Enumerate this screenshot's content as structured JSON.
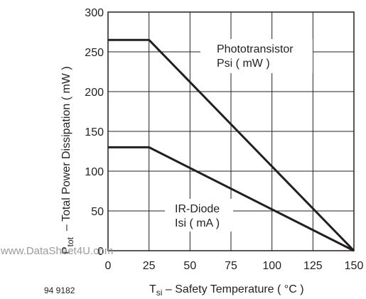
{
  "chart_data": {
    "type": "line",
    "xlabel": {
      "sym": "T",
      "sub": "si",
      "rest": " – Safety Temperature ( °C )"
    },
    "ylabel": {
      "sym": "P",
      "sub": "tot",
      "rest": "  – Total Power Dissipation ( mW )"
    },
    "xlim": [
      0,
      150
    ],
    "ylim": [
      0,
      300
    ],
    "xticks": [
      0,
      25,
      50,
      75,
      100,
      125,
      150
    ],
    "yticks": [
      0,
      50,
      100,
      150,
      200,
      250,
      300
    ],
    "grid": true,
    "series": [
      {
        "name": "Phototransistor Psi ( mW )",
        "label_lines": [
          "Phototransistor",
          "Psi ( mW )"
        ],
        "x": [
          0,
          25,
          150
        ],
        "y": [
          265,
          265,
          0
        ]
      },
      {
        "name": "IR-Diode Isi ( mA )",
        "label_lines": [
          "IR-Diode",
          "Isi ( mA )"
        ],
        "x": [
          0,
          25,
          150
        ],
        "y": [
          130,
          130,
          0
        ]
      }
    ],
    "figure_number": "94 9182",
    "watermark": "www.DataSheet4U.com"
  }
}
